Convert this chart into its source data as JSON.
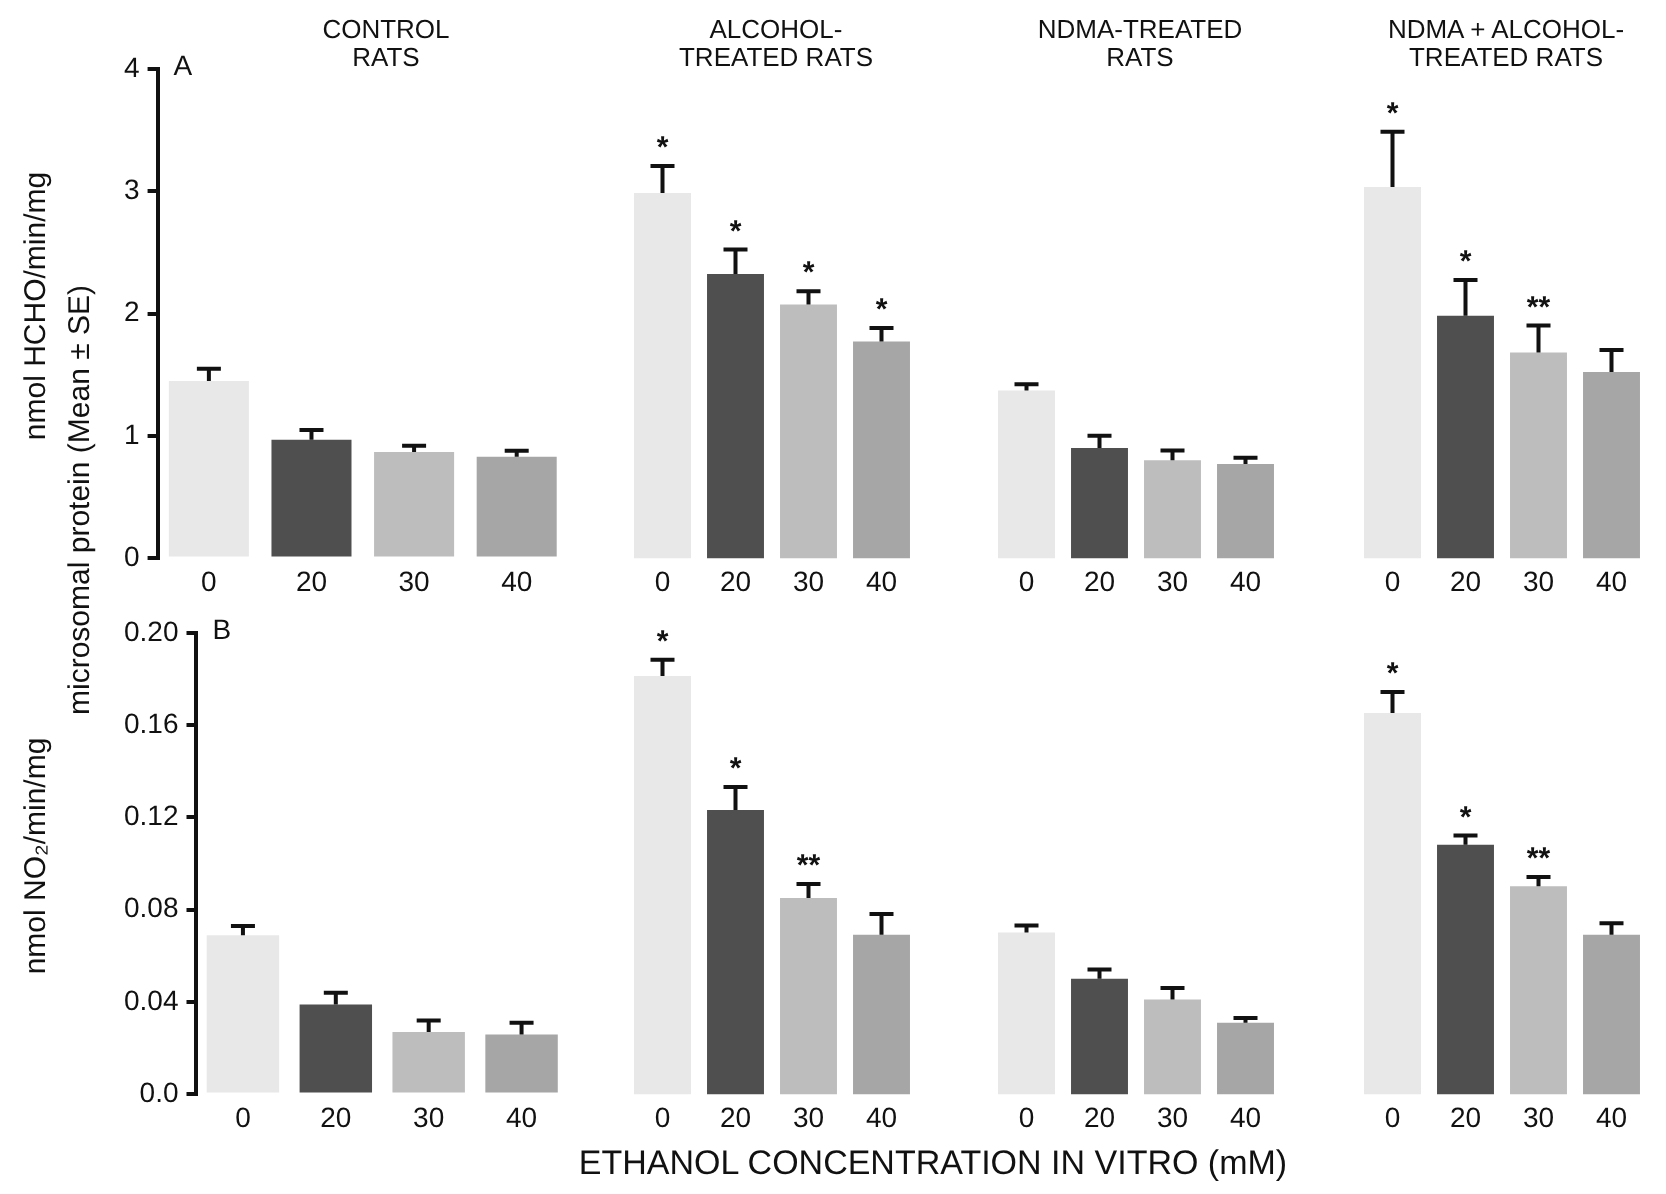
{
  "chart_data": [
    {
      "type": "bar",
      "title": "CONTROL\nRATS",
      "ylabel": "nmol HCHO/min/mg",
      "annotations": [
        "A",
        "microsomal protein (Mean ± SE)"
      ],
      "categories": [
        "0",
        "20",
        "30",
        "40"
      ],
      "values": [
        1.45,
        0.97,
        0.87,
        0.83
      ],
      "errors": [
        [
          1.45,
          1.55
        ],
        [
          0.97,
          1.05
        ],
        [
          0.87,
          0.92
        ],
        [
          0.83,
          0.88
        ]
      ],
      "colors": [
        "#e8e8e8",
        "#4f4f4f",
        "#bdbdbd",
        "#a6a6a6"
      ],
      "ylim": [
        0,
        4
      ],
      "yticks": [
        0,
        1,
        2,
        3,
        4
      ],
      "grid": false
    },
    {
      "type": "bar",
      "title": "ALCOHOL-\nTREATED RATS",
      "categories": [
        "0",
        "20",
        "30",
        "40"
      ],
      "values": [
        2.98,
        2.32,
        2.07,
        1.77
      ],
      "errors": [
        [
          2.98,
          3.2
        ],
        [
          2.32,
          2.52
        ],
        [
          2.07,
          2.18
        ],
        [
          1.77,
          1.88
        ]
      ],
      "value_labels": [
        "*",
        "*",
        "*",
        "*"
      ],
      "colors": [
        "#e8e8e8",
        "#4f4f4f",
        "#bdbdbd",
        "#a6a6a6"
      ],
      "ylim": [
        0,
        4
      ],
      "tick_labels": "x",
      "grid": false
    },
    {
      "type": "bar",
      "title": "NDMA-TREATED\nRATS",
      "categories": [
        "0",
        "20",
        "30",
        "40"
      ],
      "values": [
        1.37,
        0.9,
        0.8,
        0.77
      ],
      "errors": [
        [
          1.37,
          1.42
        ],
        [
          0.9,
          1.0
        ],
        [
          0.8,
          0.88
        ],
        [
          0.77,
          0.82
        ]
      ],
      "colors": [
        "#e8e8e8",
        "#4f4f4f",
        "#bdbdbd",
        "#a6a6a6"
      ],
      "ylim": [
        0,
        4
      ],
      "tick_labels": "x",
      "grid": false
    },
    {
      "type": "bar",
      "title": "NDMA + ALCOHOL-\nTREATED RATS",
      "categories": [
        "0",
        "20",
        "30",
        "40"
      ],
      "values": [
        3.03,
        1.98,
        1.68,
        1.52
      ],
      "errors": [
        [
          3.03,
          3.48
        ],
        [
          1.98,
          2.27
        ],
        [
          1.68,
          1.9
        ],
        [
          1.52,
          1.7
        ]
      ],
      "value_labels": [
        "*",
        "*",
        "**",
        null
      ],
      "colors": [
        "#e8e8e8",
        "#4f4f4f",
        "#bdbdbd",
        "#a6a6a6"
      ],
      "ylim": [
        0,
        4
      ],
      "tick_labels": "x",
      "grid": false
    },
    {
      "type": "bar",
      "ylabel": "nmol NO₂/min/mg",
      "xlabel": "ETHANOL CONCENTRATION IN VITRO (mM)",
      "annotations": [
        "B"
      ],
      "categories": [
        "0",
        "20",
        "30",
        "40"
      ],
      "values": [
        0.069,
        0.039,
        0.027,
        0.026
      ],
      "errors": [
        [
          0.069,
          0.073
        ],
        [
          0.039,
          0.044
        ],
        [
          0.027,
          0.032
        ],
        [
          0.026,
          0.031
        ]
      ],
      "colors": [
        "#e8e8e8",
        "#4f4f4f",
        "#bdbdbd",
        "#a6a6a6"
      ],
      "ylim": [
        0,
        0.2
      ],
      "yticks": [
        {
          "value": 0,
          "label": "0.0"
        },
        0.04,
        0.08,
        0.12,
        0.16,
        {
          "value": 0.2,
          "label": "0.20"
        }
      ],
      "grid": false
    },
    {
      "type": "bar",
      "categories": [
        "0",
        "20",
        "30",
        "40"
      ],
      "values": [
        0.181,
        0.123,
        0.085,
        0.069
      ],
      "errors": [
        [
          0.181,
          0.188
        ],
        [
          0.123,
          0.133
        ],
        [
          0.085,
          0.091
        ],
        [
          0.069,
          0.078
        ]
      ],
      "value_labels": [
        "*",
        "*",
        "**",
        null
      ],
      "colors": [
        "#e8e8e8",
        "#4f4f4f",
        "#bdbdbd",
        "#a6a6a6"
      ],
      "ylim": [
        0,
        0.2
      ],
      "tick_labels": "x",
      "grid": false
    },
    {
      "type": "bar",
      "categories": [
        "0",
        "20",
        "30",
        "40"
      ],
      "values": [
        0.07,
        0.05,
        0.041,
        0.031
      ],
      "errors": [
        [
          0.07,
          0.073
        ],
        [
          0.05,
          0.054
        ],
        [
          0.041,
          0.046
        ],
        [
          0.031,
          0.033
        ]
      ],
      "colors": [
        "#e8e8e8",
        "#4f4f4f",
        "#bdbdbd",
        "#a6a6a6"
      ],
      "ylim": [
        0,
        0.2
      ],
      "tick_labels": "x",
      "grid": false
    },
    {
      "type": "bar",
      "categories": [
        "0",
        "20",
        "30",
        "40"
      ],
      "values": [
        0.165,
        0.108,
        0.09,
        0.069
      ],
      "errors": [
        [
          0.165,
          0.174
        ],
        [
          0.108,
          0.112
        ],
        [
          0.09,
          0.094
        ],
        [
          0.069,
          0.074
        ]
      ],
      "value_labels": [
        "*",
        "*",
        "**",
        null
      ],
      "colors": [
        "#e8e8e8",
        "#4f4f4f",
        "#bdbdbd",
        "#a6a6a6"
      ],
      "ylim": [
        0,
        0.2
      ],
      "tick_labels": "x",
      "grid": false
    }
  ]
}
